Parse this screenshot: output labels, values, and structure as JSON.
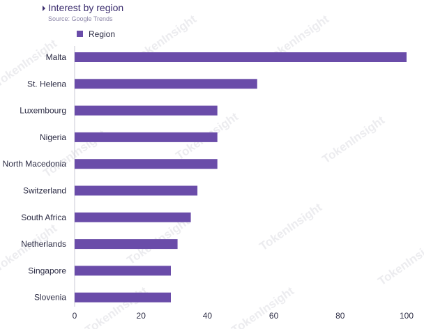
{
  "header": {
    "title": "Interest by region",
    "subtitle": "Source: Google Trends"
  },
  "watermark": {
    "text": "TokenInsight"
  },
  "colors": {
    "bar": "#6a4ca9",
    "title": "#3b2d6e",
    "text": "#2c2c44",
    "axis": "#c9c9d6"
  },
  "chart_data": {
    "type": "bar",
    "orientation": "horizontal",
    "categories": [
      "Malta",
      "St. Helena",
      "Luxembourg",
      "Nigeria",
      "North Macedonia",
      "Switzerland",
      "South Africa",
      "Netherlands",
      "Singapore",
      "Slovenia"
    ],
    "series": [
      {
        "name": "Region",
        "values": [
          100,
          55,
          43,
          43,
          43,
          37,
          35,
          31,
          29,
          29
        ]
      }
    ],
    "xlim": [
      0,
      100
    ],
    "xticks": [
      0,
      20,
      40,
      60,
      80,
      100
    ],
    "xlabel": "",
    "ylabel": "",
    "legend": "top-left",
    "grid": false
  }
}
